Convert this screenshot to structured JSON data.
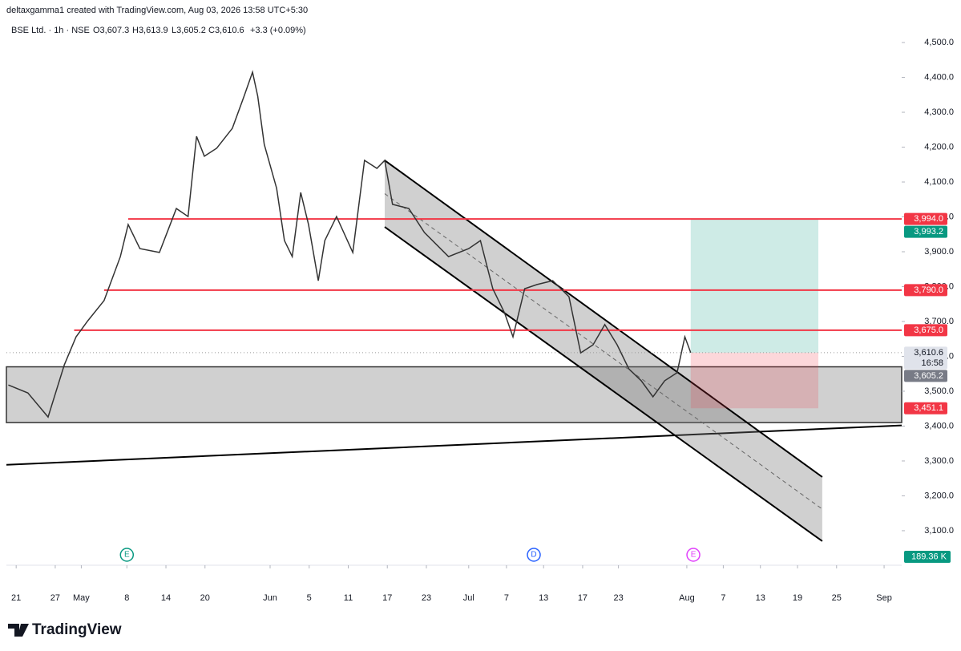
{
  "header": {
    "credit": "deltaxgamma1 created with TradingView.com, Aug 03, 2026 13:58 UTC+5:30",
    "symbol": "BSE Ltd. · 1h · NSE",
    "open": "O3,607.3",
    "high": "H3,613.9",
    "low": "L3,605.2",
    "close": "C3,610.6",
    "change": "+3.3 (+0.09%)"
  },
  "chart_data": {
    "type": "line",
    "color": "#333333",
    "x": [
      -1.2,
      1.8,
      4.9,
      7.4,
      9.2,
      11,
      13.5,
      16,
      17.2,
      19,
      22,
      24.6,
      26.4,
      27.7,
      28.9,
      30.8,
      33.2,
      35,
      36.3,
      37.1,
      38.1,
      40,
      41.2,
      42.4,
      43.7,
      44.9,
      46.4,
      47.4,
      49.2,
      51.7,
      53.5,
      55.4,
      56.6,
      57.8,
      60.3,
      62.7,
      66.4,
      69.5,
      71.3,
      73.2,
      75,
      76.3,
      78.1,
      80,
      82.4,
      84.9,
      86.7,
      88.6,
      90.4,
      92.3,
      94.1,
      96,
      97.8,
      99.6,
      101.5,
      102.7,
      103.6
    ],
    "values": [
      3518,
      3495,
      3426,
      3576,
      3656,
      3702,
      3760,
      3886,
      3978,
      3909,
      3898,
      4024,
      4001,
      4231,
      4174,
      4197,
      4254,
      4346,
      4415,
      4346,
      4208,
      4082,
      3932,
      3886,
      4070,
      3978,
      3817,
      3932,
      4001,
      3898,
      4162,
      4139,
      4162,
      4036,
      4024,
      3955,
      3886,
      3909,
      3932,
      3794,
      3725,
      3656,
      3794,
      3806,
      3817,
      3771,
      3610,
      3633,
      3691,
      3633,
      3564,
      3530,
      3484,
      3530,
      3553,
      3656,
      3610.6
    ],
    "xlim": [
      -1.5,
      136
    ],
    "ylim": [
      3001,
      4530
    ],
    "xticks": [
      {
        "value": 0,
        "label": "21"
      },
      {
        "value": 6,
        "label": "27"
      },
      {
        "value": 10,
        "label": "May"
      },
      {
        "value": 17,
        "label": "8"
      },
      {
        "value": 23,
        "label": "14"
      },
      {
        "value": 29,
        "label": "20"
      },
      {
        "value": 39,
        "label": "Jun"
      },
      {
        "value": 45,
        "label": "5"
      },
      {
        "value": 51,
        "label": "11"
      },
      {
        "value": 57,
        "label": "17"
      },
      {
        "value": 63,
        "label": "23"
      },
      {
        "value": 69.5,
        "label": "Jul"
      },
      {
        "value": 75.3,
        "label": "7"
      },
      {
        "value": 81,
        "label": "13"
      },
      {
        "value": 87,
        "label": "17"
      },
      {
        "value": 92.5,
        "label": "23"
      },
      {
        "value": 103,
        "label": "Aug"
      },
      {
        "value": 108.6,
        "label": "7"
      },
      {
        "value": 114.3,
        "label": "13"
      },
      {
        "value": 120,
        "label": "19"
      },
      {
        "value": 126,
        "label": "25"
      },
      {
        "value": 133.3,
        "label": "Sep"
      }
    ],
    "yticks": [
      {
        "value": 3100,
        "label": "3,100.0"
      },
      {
        "value": 3200,
        "label": "3,200.0"
      },
      {
        "value": 3300,
        "label": "3,300.0"
      },
      {
        "value": 3400,
        "label": "3,400.0"
      },
      {
        "value": 3500,
        "label": "3,500.0"
      },
      {
        "value": 3600,
        "label": "3,600.0"
      },
      {
        "value": 3700,
        "label": "3,700.0"
      },
      {
        "value": 3800,
        "label": "3,800.0"
      },
      {
        "value": 3900,
        "label": "3,900.0"
      },
      {
        "value": 4000,
        "label": "4,000.0"
      },
      {
        "value": 4100,
        "label": "4,100.0"
      },
      {
        "value": 4200,
        "label": "4,200.0"
      },
      {
        "value": 4300,
        "label": "4,300.0"
      },
      {
        "value": 4400,
        "label": "4,400.0"
      },
      {
        "value": 4500,
        "label": "4,500.0"
      }
    ],
    "levels": [
      {
        "value": 3994,
        "from": 17.2,
        "color": "#f23645"
      },
      {
        "value": 3790,
        "from": 13.5,
        "color": "#f23645"
      },
      {
        "value": 3675,
        "from": 8.9,
        "color": "#f23645"
      }
    ],
    "zone": {
      "top": 3570,
      "bottom": 3410,
      "from": -1.5,
      "to": 136
    },
    "trendline": {
      "x": [
        -1.5,
        136
      ],
      "values": [
        3289,
        3402
      ]
    },
    "channel": {
      "x": [
        56.6,
        123.8
      ],
      "upper": [
        4162,
        3254
      ],
      "lower": [
        3971,
        3070
      ]
    },
    "position": {
      "from": 103.6,
      "to": 123.2,
      "entry": 3610.6,
      "target": 3993.2,
      "stop": 3451.1
    },
    "last_price": 3610.6,
    "price_tags": [
      {
        "value": 3994,
        "label": "3,994.0",
        "color": "#f23645"
      },
      {
        "value": 3993.2,
        "label": "3,993.2",
        "color": "#089981"
      },
      {
        "value": 3790,
        "label": "3,790.0",
        "color": "#f23645"
      },
      {
        "value": 3675,
        "label": "3,675.0",
        "color": "#f23645"
      },
      {
        "value": 3610.6,
        "label": "3,610.6",
        "color": "#e0e3eb",
        "sub": "16:58"
      },
      {
        "value": 3605.2,
        "label": "3,605.2",
        "color": "#787b86"
      },
      {
        "value": 3451.1,
        "label": "3,451.1",
        "color": "#f23645"
      }
    ],
    "volume_tag": {
      "value": 189360,
      "label": "189.36 K",
      "color": "#089981"
    },
    "events": [
      {
        "x": 17,
        "label": "E",
        "color": "#089981"
      },
      {
        "x": 79.5,
        "label": "D",
        "color": "#2962ff"
      },
      {
        "x": 104,
        "label": "E",
        "color": "#e040fb"
      }
    ]
  },
  "footer": {
    "brand": "TradingView"
  }
}
